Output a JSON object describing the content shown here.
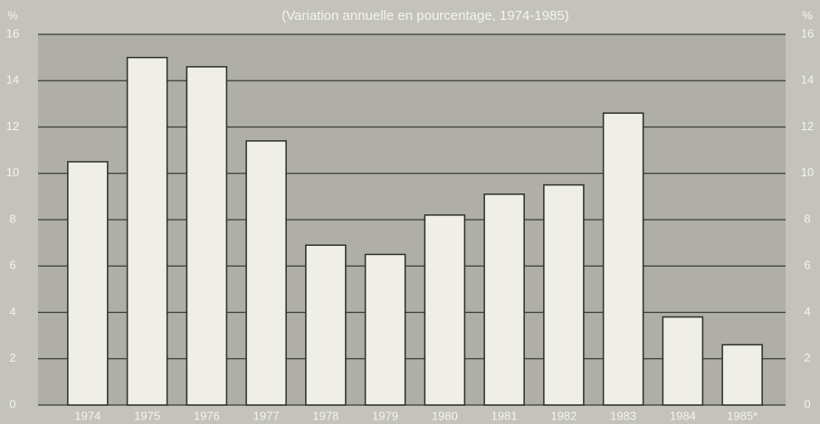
{
  "chart_data": {
    "type": "bar",
    "title": "(Variation annuelle en pourcentage, 1974-1985)",
    "ylabel": "%",
    "y2label": "%",
    "categories": [
      "1974",
      "1975",
      "1976",
      "1977",
      "1978",
      "1979",
      "1980",
      "1981",
      "1982",
      "1983",
      "1984",
      "1985*"
    ],
    "values": [
      10.5,
      15.0,
      14.6,
      11.4,
      6.9,
      6.5,
      8.2,
      9.1,
      9.5,
      12.6,
      3.8,
      2.6
    ],
    "color": "#efefe8",
    "ylim": [
      0,
      16
    ],
    "yticks": [
      0,
      2,
      4,
      6,
      8,
      10,
      12,
      14,
      16
    ],
    "y2lim": [
      0,
      16
    ],
    "y2ticks": [
      0,
      2,
      4,
      6,
      8,
      10,
      12,
      14,
      16
    ],
    "grid": true
  }
}
